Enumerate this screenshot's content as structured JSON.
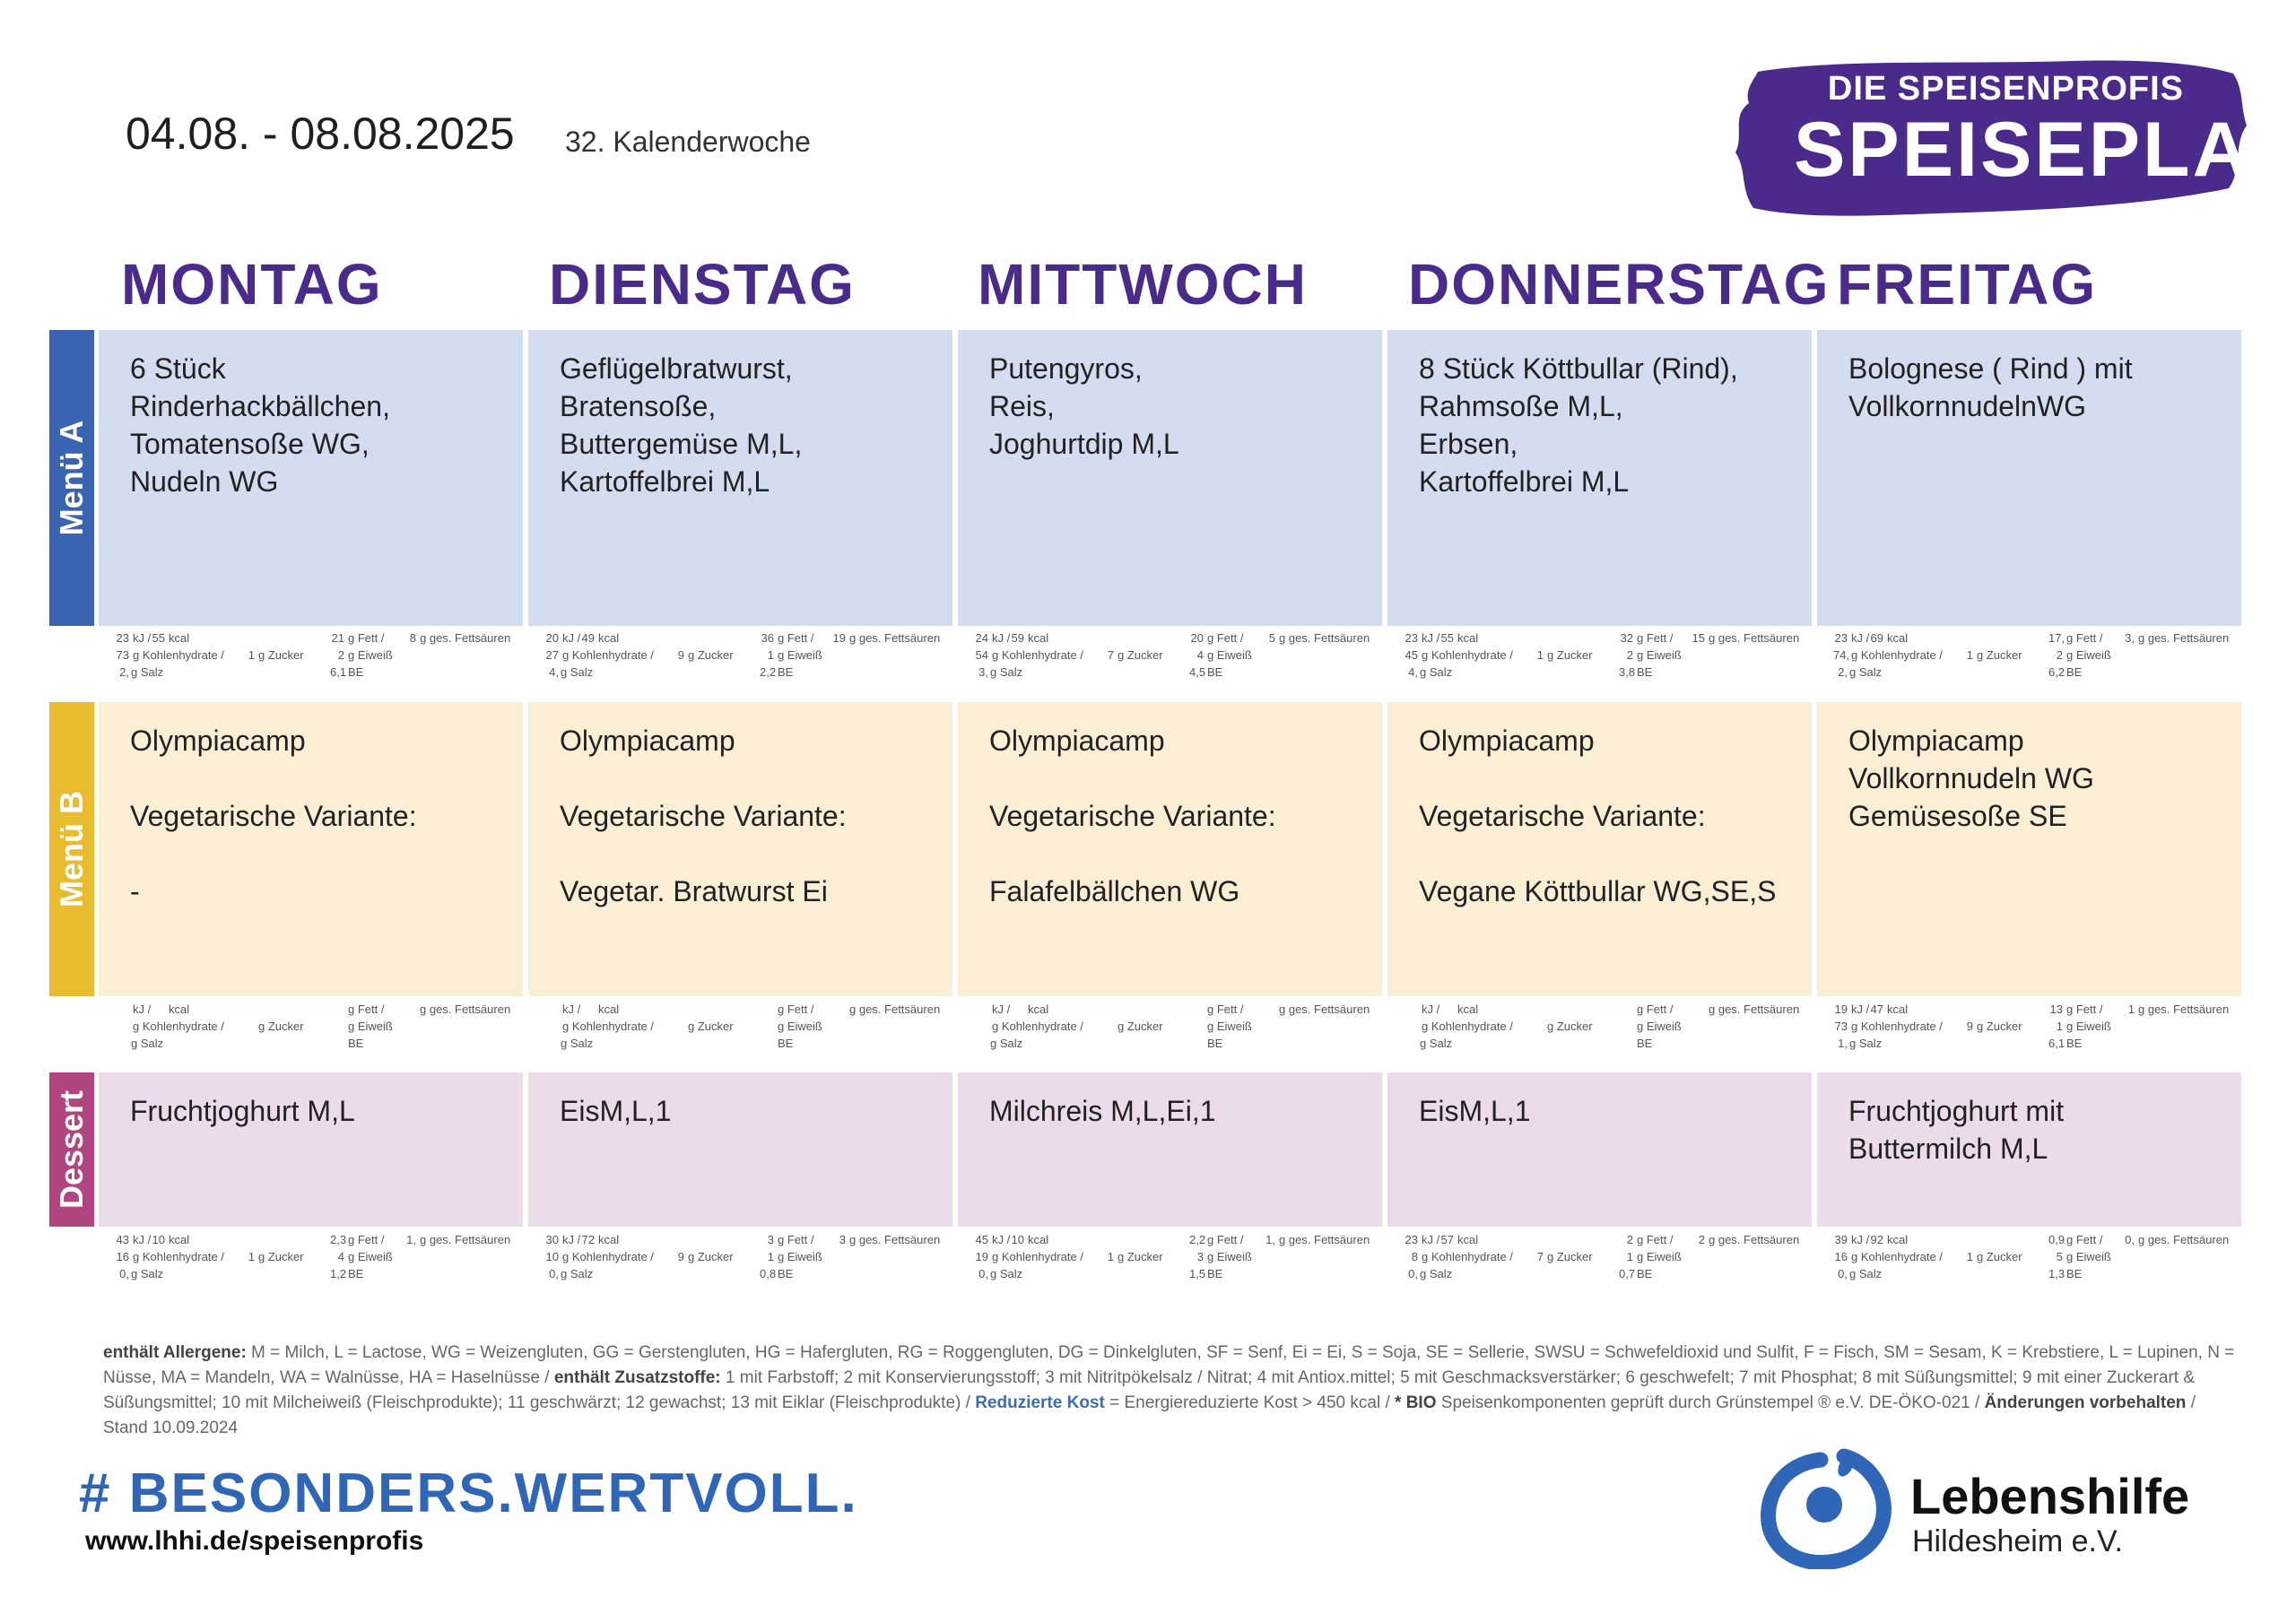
{
  "header": {
    "date_range": "04.08. - 08.08.2025",
    "week": "32. Kalenderwoche",
    "brand_sub": "DIE SPEISENPROFIS",
    "brand_main": "SPEISEPLAN",
    "brand_color": "#4a2a8a"
  },
  "days": [
    "MONTAG",
    "DIENSTAG",
    "MITTWOCH",
    "DONNERSTAG",
    "FREITAG"
  ],
  "rows": {
    "a": {
      "label": "Menü A",
      "color": "#3a64b2"
    },
    "b": {
      "label": "Menü B",
      "color": "#e9bb2e"
    },
    "d": {
      "label": "Dessert",
      "color": "#b0457f"
    }
  },
  "units": {
    "kj": "kJ /",
    "kcal": "kcal",
    "fett": "g Fett /",
    "fs": "g ges. Fettsäuren",
    "kh": "g Kohlenhydrate /",
    "zucker": "g Zucker",
    "eiweiss": "g Eiweiß",
    "salz": "g Salz",
    "be": "BE"
  },
  "menu_a": [
    {
      "lines": [
        "6 Stück",
        "Rinderhackbällchen,",
        "Tomatensoße WG,",
        "Nudeln WG"
      ],
      "n": {
        "kj": "23",
        "kcal": "55",
        "fett": "21",
        "fs": "8",
        "kh": "73",
        "zucker": "1",
        "eiweiss": "2",
        "salz": "2,",
        "be": "6,1"
      }
    },
    {
      "lines": [
        "Geflügelbratwurst,",
        "Bratensoße,",
        "Buttergemüse M,L,",
        "Kartoffelbrei M,L"
      ],
      "n": {
        "kj": "20",
        "kcal": "49",
        "fett": "36",
        "fs": "19",
        "kh": "27",
        "zucker": "9",
        "eiweiss": "1",
        "salz": "4,",
        "be": "2,2"
      }
    },
    {
      "lines": [
        "Putengyros,",
        "Reis,",
        "Joghurtdip M,L"
      ],
      "n": {
        "kj": "24",
        "kcal": "59",
        "fett": "20",
        "fs": "5",
        "kh": "54",
        "zucker": "7",
        "eiweiss": "4",
        "salz": "3,",
        "be": "4,5"
      }
    },
    {
      "lines": [
        "8 Stück Köttbullar (Rind),",
        "Rahmsoße M,L,",
        "Erbsen,",
        "Kartoffelbrei M,L"
      ],
      "n": {
        "kj": "23",
        "kcal": "55",
        "fett": "32",
        "fs": "15",
        "kh": "45",
        "zucker": "1",
        "eiweiss": "2",
        "salz": "4,",
        "be": "3,8"
      }
    },
    {
      "lines": [
        "Bolognese ( Rind ) mit",
        "VollkornnudelnWG"
      ],
      "n": {
        "kj": "23",
        "kcal": "69",
        "fett": "17,",
        "fs": "3,",
        "kh": "74,",
        "zucker": "1",
        "eiweiss": "2",
        "salz": "2,",
        "be": "6,2"
      }
    }
  ],
  "menu_b": [
    {
      "lines": [
        "Olympiacamp",
        "",
        "Vegetarische Variante:",
        "",
        "-"
      ],
      "n": {
        "kj": "",
        "kcal": "",
        "fett": "",
        "fs": "",
        "kh": "",
        "zucker": "",
        "eiweiss": "",
        "salz": "",
        "be": ""
      }
    },
    {
      "lines": [
        "Olympiacamp",
        "",
        "Vegetarische Variante:",
        "",
        "Vegetar. Bratwurst Ei"
      ],
      "n": {
        "kj": "",
        "kcal": "",
        "fett": "",
        "fs": "",
        "kh": "",
        "zucker": "",
        "eiweiss": "",
        "salz": "",
        "be": ""
      }
    },
    {
      "lines": [
        "Olympiacamp",
        "",
        "Vegetarische Variante:",
        "",
        "Falafelbällchen WG"
      ],
      "n": {
        "kj": "",
        "kcal": "",
        "fett": "",
        "fs": "",
        "kh": "",
        "zucker": "",
        "eiweiss": "",
        "salz": "",
        "be": ""
      }
    },
    {
      "lines": [
        "Olympiacamp",
        "",
        "Vegetarische Variante:",
        "",
        "Vegane Köttbullar WG,SE,S"
      ],
      "n": {
        "kj": "",
        "kcal": "",
        "fett": "",
        "fs": "",
        "kh": "",
        "zucker": "",
        "eiweiss": "",
        "salz": "",
        "be": ""
      }
    },
    {
      "lines": [
        "Olympiacamp",
        "Vollkornnudeln WG",
        "Gemüsesoße SE"
      ],
      "n": {
        "kj": "19",
        "kcal": "47",
        "fett": "13",
        "fs": "1",
        "kh": "73",
        "zucker": "9",
        "eiweiss": "1",
        "salz": "1,",
        "be": "6,1"
      }
    }
  ],
  "dessert": [
    {
      "lines": [
        "Fruchtjoghurt M,L"
      ],
      "n": {
        "kj": "43",
        "kcal": "10",
        "fett": "2,3",
        "fs": "1,",
        "kh": "16",
        "zucker": "1",
        "eiweiss": "4",
        "salz": "0,",
        "be": "1,2"
      }
    },
    {
      "lines": [
        "EisM,L,1"
      ],
      "n": {
        "kj": "30",
        "kcal": "72",
        "fett": "3",
        "fs": "3",
        "kh": "10",
        "zucker": "9",
        "eiweiss": "1",
        "salz": "0,",
        "be": "0,8"
      }
    },
    {
      "lines": [
        "Milchreis M,L,Ei,1"
      ],
      "n": {
        "kj": "45",
        "kcal": "10",
        "fett": "2,2",
        "fs": "1,",
        "kh": "19",
        "zucker": "1",
        "eiweiss": "3",
        "salz": "0,",
        "be": "1,5"
      }
    },
    {
      "lines": [
        "EisM,L,1"
      ],
      "n": {
        "kj": "23",
        "kcal": "57",
        "fett": "2",
        "fs": "2",
        "kh": "8",
        "zucker": "7",
        "eiweiss": "1",
        "salz": "0,",
        "be": "0,7"
      }
    },
    {
      "lines": [
        "Fruchtjoghurt mit",
        "Buttermilch M,L"
      ],
      "n": {
        "kj": "39",
        "kcal": "92",
        "fett": "0,9",
        "fs": "0,",
        "kh": "16",
        "zucker": "1",
        "eiweiss": "5",
        "salz": "0,",
        "be": "1,3"
      }
    }
  ],
  "footer": {
    "allergen_label": "enthält Allergene:",
    "allergen_text": "M = Milch, L = Lactose, WG = Weizengluten, GG = Gerstengluten, HG = Hafergluten, RG = Roggengluten, DG = Dinkelgluten, SF = Senf, Ei = Ei, S = Soja, SE = Sellerie, SWSU = Schwefeldioxid und Sulfit, F = Fisch, SM = Sesam, K = Krebstiere, L = Lupinen, N = Nüsse, MA = Mandeln, WA = Walnüsse, HA =  Haselnüsse /",
    "additives_label": "enthält Zusatzstoffe:",
    "additives_text": "1 mit Farbstoff; 2 mit Konservierungsstoff; 3 mit Nitritpökelsalz / Nitrat; 4 mit Antiox.mittel; 5 mit Geschmacksverstärker; 6 geschwefelt; 7 mit Phosphat; 8 mit Süßungsmittel; 9 mit einer Zuckerart & Süßungsmittel; 10 mit Milcheiweiß (Fleischprodukte); 11 geschwärzt; 12 gewachst; 13 mit Eiklar (Fleischprodukte) /",
    "reduced_label": "Reduzierte Kost",
    "reduced_text": "= Energiereduzierte Kost > 450 kcal /",
    "bio_label": "* BIO",
    "bio_text": "Speisenkomponenten geprüft durch Grünstempel ® e.V. DE-ÖKO-021 /",
    "changes_label": "Änderungen vorbehalten",
    "stand_text": "/ Stand    10.09.2024",
    "hashtag": "# BESONDERS.WERTVOLL.",
    "website": "www.lhhi.de/speisenprofis",
    "org_name": "Lebenshilfe",
    "org_sub": "Hildesheim e.V.",
    "hashtag_color": "#2f66b7"
  }
}
